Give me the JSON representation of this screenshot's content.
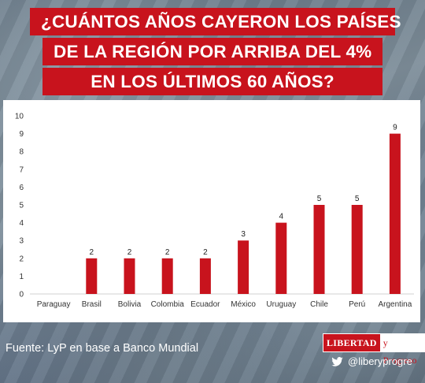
{
  "title_lines": [
    "¿CUÁNTOS AÑOS CAYERON LOS PAÍSES",
    "DE LA REGIÓN POR ARRIBA DEL 4%",
    "EN LOS ÚLTIMOS 60 AÑOS?"
  ],
  "chart_data": {
    "type": "bar",
    "categories": [
      "Paraguay",
      "Brasil",
      "Bolivia",
      "Colombia",
      "Ecuador",
      "México",
      "Uruguay",
      "Chile",
      "Perú",
      "Argentina"
    ],
    "values": [
      0,
      2,
      2,
      2,
      2,
      3,
      4,
      5,
      5,
      9
    ],
    "data_labels": [
      "",
      "2",
      "2",
      "2",
      "2",
      "3",
      "4",
      "5",
      "5",
      "9"
    ],
    "yticks": [
      "0",
      "1",
      "2",
      "3",
      "4",
      "5",
      "6",
      "7",
      "8",
      "9",
      "10"
    ],
    "ylim": [
      0,
      10
    ],
    "bar_color": "#c8131d",
    "grid": false
  },
  "footer": {
    "source": "Fuente: LyP en base a Banco Mundial",
    "logo_left": "LIBERTAD",
    "logo_right": "y Progreso",
    "handle": "@liberyprogre",
    "handle_icon": "twitter-icon"
  }
}
